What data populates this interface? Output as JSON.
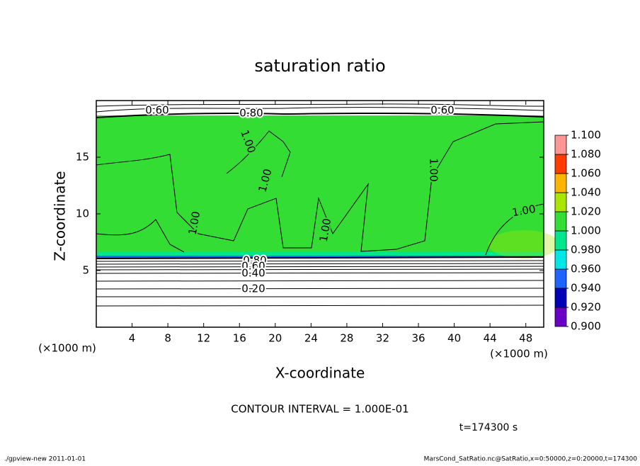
{
  "chart_data": {
    "type": "contour",
    "title": "saturation ratio",
    "x_label": "X-coordinate",
    "y_label": "Z-coordinate",
    "x_unit": "(×1000 m)",
    "y_unit": "(×1000 m)",
    "xlim": [
      0,
      50
    ],
    "ylim": [
      0,
      20
    ],
    "xticks": [
      4,
      8,
      12,
      16,
      20,
      24,
      28,
      32,
      36,
      40,
      44,
      48
    ],
    "yticks": [
      5,
      10,
      15
    ],
    "colorbar": {
      "levels": [
        {
          "value": 0.9,
          "label": "0.900"
        },
        {
          "value": 0.92,
          "label": "0.920"
        },
        {
          "value": 0.94,
          "label": "0.940"
        },
        {
          "value": 0.96,
          "label": "0.960"
        },
        {
          "value": 0.98,
          "label": "0.980"
        },
        {
          "value": 1.0,
          "label": "1.000"
        },
        {
          "value": 1.02,
          "label": "1.020"
        },
        {
          "value": 1.04,
          "label": "1.040"
        },
        {
          "value": 1.06,
          "label": "1.060"
        },
        {
          "value": 1.08,
          "label": "1.080"
        },
        {
          "value": 1.1,
          "label": "1.100"
        }
      ],
      "colors": [
        "#6a00c8",
        "#0000b4",
        "#1e64ff",
        "#00e6e6",
        "#00e68c",
        "#33dd33",
        "#a8e600",
        "#ffb400",
        "#ff3c00",
        "#ff9696"
      ]
    },
    "contour_labels": [
      "0.60",
      "0.80",
      "0.60",
      "1.00",
      "1.00",
      "1.00",
      "1.00",
      "1.00",
      "1.00",
      "0.80",
      "0.60",
      "0.40",
      "0.20"
    ],
    "contour_interval": "CONTOUR INTERVAL = 1.000E-01",
    "time": "t=174300 s"
  },
  "footer": {
    "left": "./gpview-new   2011-01-01",
    "right": "MarsCond_SatRatio.nc@SatRatio,x=0:50000,z=0:20000,t=174300"
  }
}
